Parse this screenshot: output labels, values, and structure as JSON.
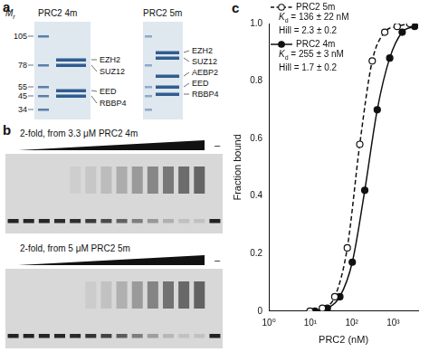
{
  "panel_a": {
    "letter": "a",
    "marker_label": {
      "text": "M",
      "sub": "r"
    },
    "markers": [
      105,
      78,
      55,
      45,
      34
    ],
    "gels": [
      {
        "title": "PRC2 4m",
        "bands": [
          "EZH2",
          "SUZ12",
          "EED",
          "RBBP4"
        ]
      },
      {
        "title": "PRC2 5m",
        "bands": [
          "EZH2",
          "SUZ12",
          "AEBP2",
          "EED",
          "RBBP4"
        ]
      }
    ]
  },
  "panel_b": {
    "letter": "b",
    "gels": [
      {
        "title": "2-fold, from 3.3 μM PRC2 4m",
        "control": "–"
      },
      {
        "title": "2-fold, from 5 μM PRC2 5m",
        "control": "–"
      }
    ]
  },
  "chart_data": {
    "type": "scatter",
    "title": "c",
    "x_label": "PRC2 (nM)",
    "y_label": "Fraction bound",
    "log": "x",
    "grid": false,
    "legend": "top-left",
    "xlim": [
      1,
      4000
    ],
    "xticks": [
      {
        "value": 1,
        "label": "10⁰"
      },
      {
        "value": 10,
        "label": "10¹"
      },
      {
        "value": 100,
        "label": "10²"
      },
      {
        "value": 1000,
        "label": "10³"
      }
    ],
    "ylim": [
      0,
      1
    ],
    "yticks": [
      0,
      0.2,
      0.4,
      0.6,
      0.8,
      {
        "value": 1,
        "label": "1.0"
      }
    ],
    "series": [
      {
        "name": "PRC2 5m",
        "color": "#111111",
        "marker": "open circle",
        "line_style": "dashed",
        "x": [
          9.8,
          19.5,
          39,
          78,
          156,
          312,
          625,
          1250,
          2500
        ],
        "values": [
          0,
          0.01,
          0.05,
          0.22,
          0.58,
          0.87,
          0.97,
          0.99,
          1.0
        ],
        "stats": [
          {
            "text": "K",
            "sub": "d",
            "rest": " = 136 ± 22 nM"
          },
          {
            "text": "Hill = 2.3 ± 0.2"
          }
        ]
      },
      {
        "name": "PRC2 4m",
        "color": "#111111",
        "marker": "filled circle",
        "line_style": "solid",
        "x": [
          12.9,
          25.8,
          51.6,
          103,
          206,
          412,
          825,
          1650,
          3300
        ],
        "values": [
          0,
          0.01,
          0.05,
          0.17,
          0.42,
          0.7,
          0.88,
          0.97,
          0.99
        ],
        "stats": [
          {
            "text": "K",
            "sub": "d",
            "rest": " = 255 ± 3 nM"
          },
          {
            "text": "Hill = 1.7 ± 0.2"
          }
        ]
      }
    ]
  }
}
